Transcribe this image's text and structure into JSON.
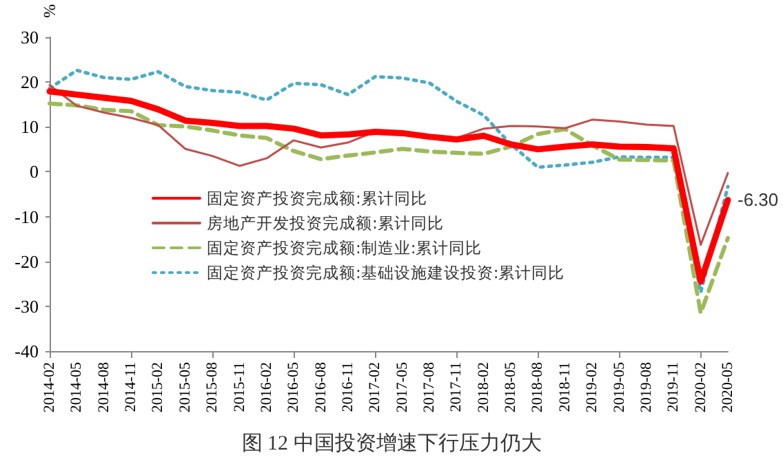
{
  "chart_data": {
    "type": "line",
    "title": "图 12 中国投资增速下行压力仍大",
    "ylabel": "%",
    "categories": [
      "2014-02",
      "2014-05",
      "2014-08",
      "2014-11",
      "2015-02",
      "2015-05",
      "2015-08",
      "2015-11",
      "2016-02",
      "2016-05",
      "2016-08",
      "2016-11",
      "2017-02",
      "2017-05",
      "2017-08",
      "2017-11",
      "2018-02",
      "2018-05",
      "2018-08",
      "2018-11",
      "2019-02",
      "2019-05",
      "2019-08",
      "2019-11",
      "2020-02",
      "2020-05"
    ],
    "series": [
      {
        "name": "固定资产投资完成额:累计同比",
        "color": "#ff0000",
        "line_style": "solid",
        "values": [
          17.9,
          17.2,
          16.5,
          15.8,
          13.9,
          11.4,
          10.9,
          10.2,
          10.2,
          9.6,
          8.1,
          8.3,
          8.9,
          8.6,
          7.8,
          7.2,
          8.0,
          6.1,
          5.0,
          5.6,
          6.1,
          5.6,
          5.5,
          5.2,
          -24.5,
          -6.3
        ]
      },
      {
        "name": "房地产开发投资完成额:累计同比",
        "color": "#c0504d",
        "line_style": "solid",
        "values": [
          19.3,
          14.7,
          13.2,
          12.0,
          10.4,
          5.1,
          3.5,
          1.3,
          3.0,
          7.0,
          5.4,
          6.5,
          8.9,
          8.8,
          7.9,
          7.5,
          9.6,
          10.2,
          10.1,
          9.7,
          11.6,
          11.2,
          10.5,
          10.2,
          -16.3,
          -0.3
        ]
      },
      {
        "name": "固定资产投资完成额:制造业:累计同比",
        "color": "#9bbb59",
        "line_style": "dashed",
        "values": [
          15.2,
          14.8,
          13.8,
          13.5,
          10.4,
          10.1,
          9.2,
          8.1,
          7.5,
          4.6,
          2.8,
          3.6,
          4.3,
          5.1,
          4.5,
          4.2,
          4.0,
          5.6,
          8.4,
          9.5,
          5.9,
          2.7,
          2.6,
          2.5,
          -31.5,
          -14.8
        ]
      },
      {
        "name": "固定资产投资完成额:基础设施建设投资:累计同比",
        "color": "#4bacc6",
        "line_style": "dotted",
        "values": [
          18.6,
          22.6,
          21.0,
          20.6,
          22.3,
          19.0,
          18.1,
          17.7,
          16.0,
          19.7,
          19.4,
          17.2,
          21.2,
          20.9,
          19.8,
          15.7,
          12.6,
          6.1,
          1.0,
          1.5,
          2.1,
          3.3,
          3.2,
          3.2,
          -26.9,
          -3.3
        ]
      }
    ],
    "annotations": [
      {
        "text": "-6.30",
        "x": "2020-05",
        "y": -6.3
      }
    ],
    "ylim": [
      -40,
      30
    ],
    "yticks": [
      -40,
      -30,
      -20,
      -10,
      0,
      10,
      20,
      30
    ],
    "grid": false,
    "legend": "left",
    "marker": "none"
  }
}
